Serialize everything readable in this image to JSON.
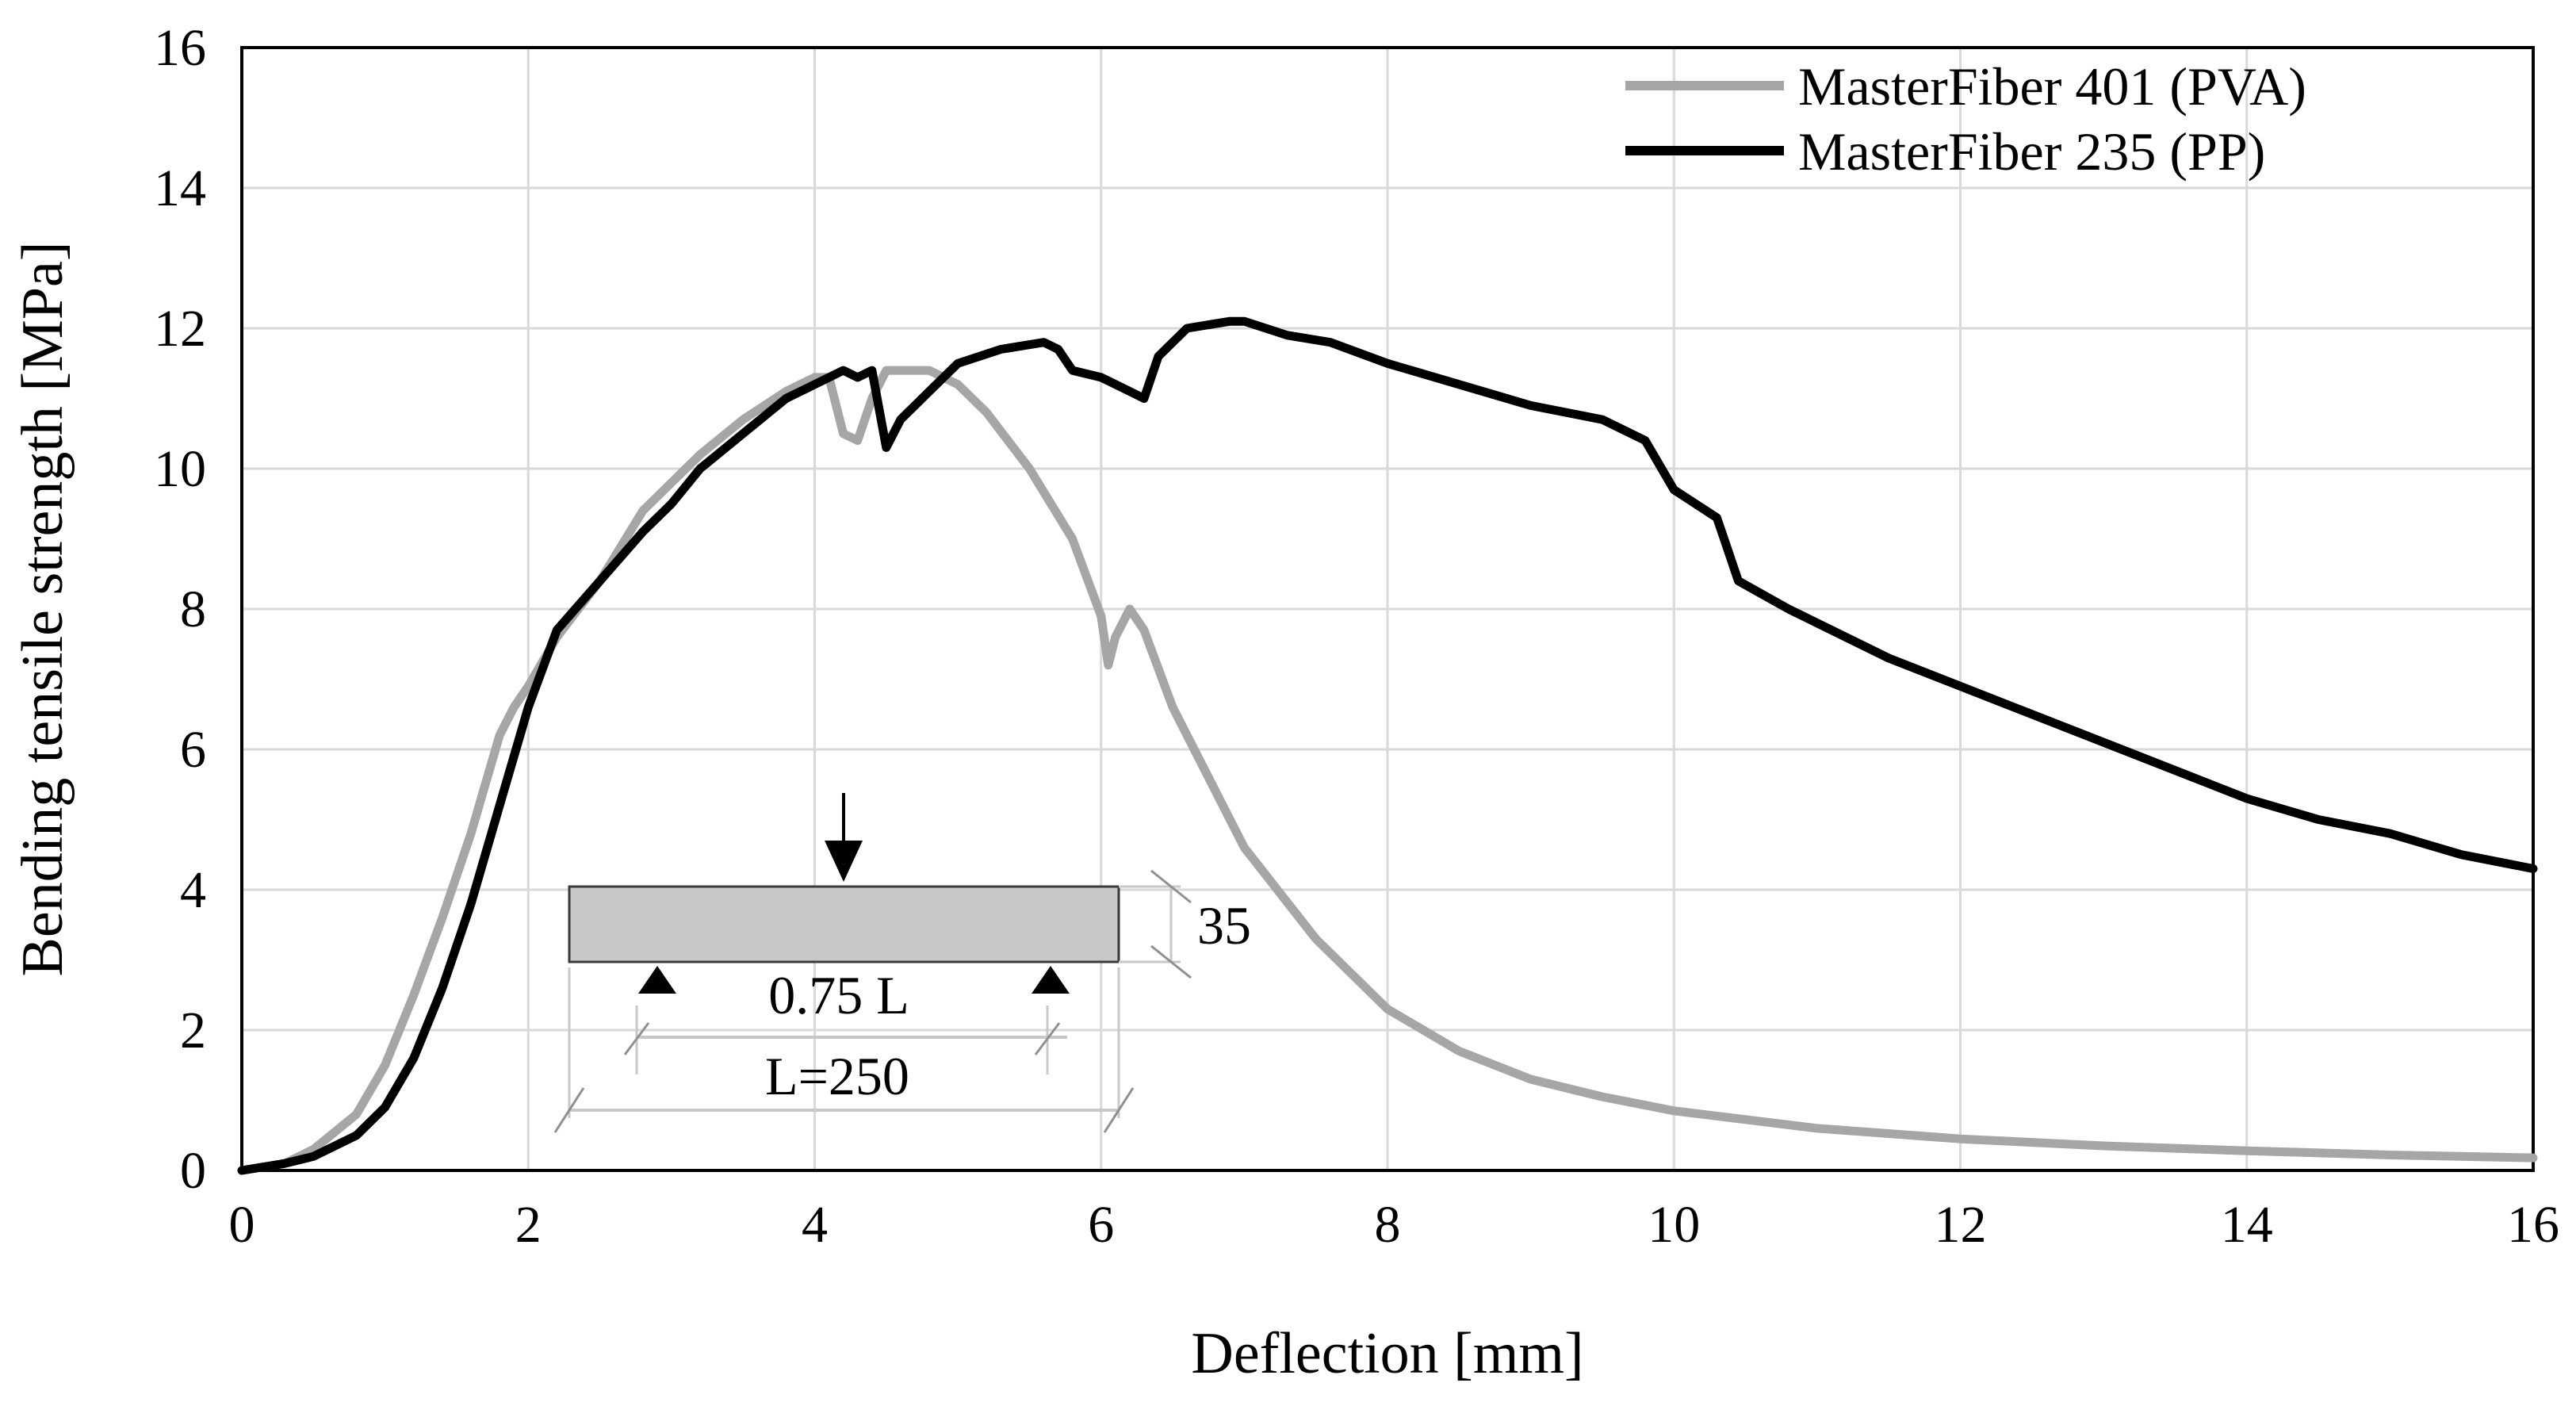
{
  "chart_data": {
    "type": "line",
    "xlabel": "Deflection [mm]",
    "ylabel": "Bending tensile strength [MPa]",
    "xlim": [
      0,
      16
    ],
    "ylim": [
      0,
      16
    ],
    "xticks": [
      0,
      2,
      4,
      6,
      8,
      10,
      12,
      14,
      16
    ],
    "yticks": [
      0,
      2,
      4,
      6,
      8,
      10,
      12,
      14,
      16
    ],
    "grid": true,
    "legend_position": "top-right",
    "series": [
      {
        "name": "MasterFiber 401 (PVA)",
        "color": "#a6a6a6",
        "points": [
          [
            0.0,
            0.0
          ],
          [
            0.3,
            0.1
          ],
          [
            0.5,
            0.3
          ],
          [
            0.8,
            0.8
          ],
          [
            1.0,
            1.5
          ],
          [
            1.2,
            2.5
          ],
          [
            1.4,
            3.6
          ],
          [
            1.6,
            4.8
          ],
          [
            1.8,
            6.2
          ],
          [
            1.9,
            6.6
          ],
          [
            2.0,
            6.9
          ],
          [
            2.2,
            7.6
          ],
          [
            2.5,
            8.4
          ],
          [
            2.8,
            9.4
          ],
          [
            3.0,
            9.8
          ],
          [
            3.2,
            10.2
          ],
          [
            3.5,
            10.7
          ],
          [
            3.8,
            11.1
          ],
          [
            4.0,
            11.3
          ],
          [
            4.1,
            11.3
          ],
          [
            4.2,
            10.5
          ],
          [
            4.3,
            10.4
          ],
          [
            4.4,
            11.0
          ],
          [
            4.5,
            11.4
          ],
          [
            4.8,
            11.4
          ],
          [
            5.0,
            11.2
          ],
          [
            5.2,
            10.8
          ],
          [
            5.5,
            10.0
          ],
          [
            5.8,
            9.0
          ],
          [
            6.0,
            7.9
          ],
          [
            6.05,
            7.2
          ],
          [
            6.1,
            7.6
          ],
          [
            6.2,
            8.0
          ],
          [
            6.3,
            7.7
          ],
          [
            6.5,
            6.6
          ],
          [
            7.0,
            4.6
          ],
          [
            7.5,
            3.3
          ],
          [
            8.0,
            2.3
          ],
          [
            8.5,
            1.7
          ],
          [
            9.0,
            1.3
          ],
          [
            9.5,
            1.05
          ],
          [
            10.0,
            0.85
          ],
          [
            11.0,
            0.6
          ],
          [
            12.0,
            0.45
          ],
          [
            13.0,
            0.35
          ],
          [
            14.0,
            0.28
          ],
          [
            15.0,
            0.22
          ],
          [
            16.0,
            0.18
          ]
        ]
      },
      {
        "name": "MasterFiber 235 (PP)",
        "color": "#000000",
        "points": [
          [
            0.0,
            0.0
          ],
          [
            0.3,
            0.1
          ],
          [
            0.5,
            0.2
          ],
          [
            0.8,
            0.5
          ],
          [
            1.0,
            0.9
          ],
          [
            1.2,
            1.6
          ],
          [
            1.4,
            2.6
          ],
          [
            1.6,
            3.8
          ],
          [
            1.8,
            5.2
          ],
          [
            2.0,
            6.6
          ],
          [
            2.2,
            7.7
          ],
          [
            2.5,
            8.4
          ],
          [
            2.8,
            9.1
          ],
          [
            3.0,
            9.5
          ],
          [
            3.2,
            10.0
          ],
          [
            3.5,
            10.5
          ],
          [
            3.8,
            11.0
          ],
          [
            4.0,
            11.2
          ],
          [
            4.2,
            11.4
          ],
          [
            4.3,
            11.3
          ],
          [
            4.4,
            11.4
          ],
          [
            4.5,
            10.3
          ],
          [
            4.6,
            10.7
          ],
          [
            4.8,
            11.1
          ],
          [
            5.0,
            11.5
          ],
          [
            5.3,
            11.7
          ],
          [
            5.6,
            11.8
          ],
          [
            5.7,
            11.7
          ],
          [
            5.8,
            11.4
          ],
          [
            6.0,
            11.3
          ],
          [
            6.2,
            11.1
          ],
          [
            6.3,
            11.0
          ],
          [
            6.4,
            11.6
          ],
          [
            6.6,
            12.0
          ],
          [
            6.9,
            12.1
          ],
          [
            7.0,
            12.1
          ],
          [
            7.3,
            11.9
          ],
          [
            7.6,
            11.8
          ],
          [
            8.0,
            11.5
          ],
          [
            8.5,
            11.2
          ],
          [
            9.0,
            10.9
          ],
          [
            9.5,
            10.7
          ],
          [
            9.8,
            10.4
          ],
          [
            10.0,
            9.7
          ],
          [
            10.3,
            9.3
          ],
          [
            10.35,
            9.0
          ],
          [
            10.45,
            8.4
          ],
          [
            10.8,
            8.0
          ],
          [
            11.5,
            7.3
          ],
          [
            12.0,
            6.9
          ],
          [
            12.5,
            6.5
          ],
          [
            13.0,
            6.1
          ],
          [
            13.5,
            5.7
          ],
          [
            14.0,
            5.3
          ],
          [
            14.5,
            5.0
          ],
          [
            15.0,
            4.8
          ],
          [
            15.5,
            4.5
          ],
          [
            16.0,
            4.3
          ]
        ]
      }
    ]
  },
  "inset": {
    "height_label": "35",
    "support_spacing_label": "0.75 L",
    "span_label": "L=250"
  }
}
